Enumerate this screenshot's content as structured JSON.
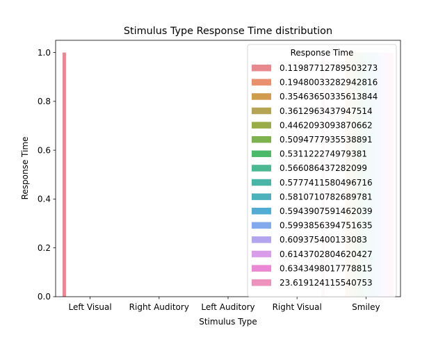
{
  "chart_data": {
    "type": "bar",
    "title": "Stimulus Type Response Time distribution",
    "xlabel": "Stimulus Type",
    "ylabel": "Response Time",
    "ylim": [
      0,
      1.05
    ],
    "yticks": [
      {
        "value": 0.0,
        "label": "0.0"
      },
      {
        "value": 0.2,
        "label": "0.2"
      },
      {
        "value": 0.4,
        "label": "0.4"
      },
      {
        "value": 0.6,
        "label": "0.6"
      },
      {
        "value": 0.8,
        "label": "0.8"
      },
      {
        "value": 1.0,
        "label": "1.0"
      }
    ],
    "grid": false,
    "categories": [
      "Left Visual",
      "Right Auditory",
      "Left Auditory",
      "Right Visual",
      "Smiley"
    ],
    "legend": {
      "title": "Response Time",
      "placement": "top-right"
    },
    "series": [
      {
        "name": "0.11987712789503273",
        "color": "#e8888f",
        "values": [
          1,
          0,
          0,
          0,
          0
        ]
      },
      {
        "name": "0.1948003328294281​6",
        "color": "#e9906e",
        "values": [
          0,
          0,
          0,
          0,
          0
        ]
      },
      {
        "name": "0.35463650335613844",
        "color": "#d09a4f",
        "values": [
          0,
          0,
          0,
          0,
          1
        ]
      },
      {
        "name": "0.3612963437947514",
        "color": "#b6a455",
        "values": [
          0,
          0,
          0,
          0,
          1
        ]
      },
      {
        "name": "0.4462093093870662",
        "color": "#9aac47",
        "values": [
          0,
          0,
          0,
          0,
          1
        ]
      },
      {
        "name": "0.5094777935538891",
        "color": "#7db24f",
        "values": [
          0,
          0,
          0,
          0,
          1
        ]
      },
      {
        "name": "0.531122274979381",
        "color": "#4bb86a",
        "values": [
          0,
          0,
          0,
          0,
          1
        ]
      },
      {
        "name": "0.566086437282099",
        "color": "#4cb891",
        "values": [
          0,
          0,
          0,
          0,
          1
        ]
      },
      {
        "name": "0.5777411580496716",
        "color": "#4ab4a6",
        "values": [
          0,
          0,
          0,
          0,
          1
        ]
      },
      {
        "name": "0.5810710782689781",
        "color": "#4db1bb",
        "values": [
          0,
          0,
          0,
          0,
          1
        ]
      },
      {
        "name": "0.5943907591462039",
        "color": "#50acd3",
        "values": [
          0,
          0,
          0,
          0,
          1
        ]
      },
      {
        "name": "0.5993856394751635",
        "color": "#84aaee",
        "values": [
          0,
          0,
          0,
          0,
          1
        ]
      },
      {
        "name": "0.609375400133083",
        "color": "#b3a4ee",
        "values": [
          0,
          0,
          0,
          0,
          1
        ]
      },
      {
        "name": "0.6143702804620427",
        "color": "#d99ce8",
        "values": [
          0,
          0,
          0,
          0,
          1
        ]
      },
      {
        "name": "0.6343498017778815",
        "color": "#ea88d6",
        "values": [
          0,
          0,
          0,
          0,
          1
        ]
      },
      {
        "name": "23.619124115540753",
        "color": "#ec92bc",
        "values": [
          0,
          0,
          0,
          1,
          1
        ]
      }
    ]
  }
}
